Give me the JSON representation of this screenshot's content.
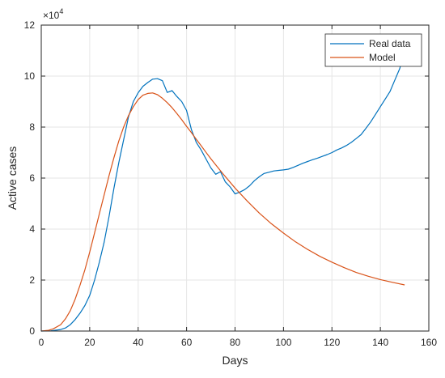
{
  "chart_data": {
    "type": "line",
    "xlabel": "Days",
    "ylabel": "Active cases",
    "exponent_label": "×10",
    "exponent_power": "4",
    "xlim": [
      0,
      160
    ],
    "ylim": [
      0,
      120000
    ],
    "xticks": [
      0,
      20,
      40,
      60,
      80,
      100,
      120,
      140,
      160
    ],
    "yticks": [
      0,
      20000,
      40000,
      60000,
      80000,
      100000,
      120000
    ],
    "xtick_labels": [
      "0",
      "20",
      "40",
      "60",
      "80",
      "100",
      "120",
      "140",
      "160"
    ],
    "ytick_labels": [
      "0",
      "2",
      "4",
      "6",
      "8",
      "10",
      "12"
    ],
    "grid": true,
    "legend_position": "top-right",
    "series": [
      {
        "name": "Real data",
        "color": "#0072BD",
        "x": [
          0,
          4,
          8,
          10,
          12,
          14,
          16,
          18,
          20,
          22,
          24,
          26,
          28,
          30,
          32,
          34,
          36,
          38,
          40,
          42,
          44,
          46,
          48,
          50,
          52,
          54,
          56,
          58,
          60,
          62,
          64,
          66,
          68,
          70,
          72,
          74,
          76,
          78,
          80,
          82,
          84,
          86,
          88,
          90,
          92,
          94,
          96,
          98,
          100,
          102,
          104,
          106,
          108,
          110,
          112,
          114,
          116,
          118,
          120,
          122,
          124,
          126,
          128,
          130,
          132,
          134,
          136,
          138,
          140,
          142,
          144,
          146,
          148,
          150
        ],
        "y": [
          0,
          100,
          600,
          1200,
          2500,
          4500,
          7000,
          10000,
          14000,
          20000,
          27000,
          35000,
          45000,
          56000,
          66000,
          75000,
          84000,
          90000,
          93500,
          96000,
          97500,
          98800,
          99000,
          98200,
          93600,
          94300,
          92000,
          90000,
          86500,
          79000,
          74000,
          71000,
          67500,
          64000,
          61500,
          62500,
          58500,
          56500,
          53800,
          54500,
          55500,
          57000,
          59000,
          60500,
          61800,
          62300,
          62800,
          63000,
          63200,
          63500,
          64200,
          65000,
          65800,
          66500,
          67200,
          67800,
          68500,
          69200,
          70000,
          71000,
          71800,
          72800,
          74000,
          75500,
          77000,
          79500,
          82000,
          85000,
          88000,
          91000,
          94000,
          98500,
          103000,
          110000
        ]
      },
      {
        "name": "Model",
        "color": "#D95319",
        "x": [
          0,
          3,
          5,
          8,
          10,
          12,
          14,
          16,
          18,
          20,
          22,
          24,
          26,
          28,
          30,
          32,
          34,
          36,
          38,
          40,
          42,
          44,
          46,
          48,
          50,
          52,
          54,
          56,
          58,
          60,
          62,
          64,
          66,
          68,
          70,
          72,
          75,
          80,
          85,
          90,
          95,
          100,
          105,
          110,
          115,
          120,
          125,
          130,
          135,
          140,
          145,
          150
        ],
        "y": [
          0,
          300,
          900,
          2500,
          4800,
          8000,
          12500,
          18000,
          24000,
          31000,
          38500,
          46000,
          53500,
          61000,
          68000,
          74500,
          80000,
          84500,
          88000,
          90800,
          92500,
          93200,
          93400,
          92700,
          91300,
          89600,
          87600,
          85300,
          82900,
          80300,
          77800,
          75200,
          72700,
          70100,
          67600,
          65200,
          61700,
          56100,
          51000,
          46300,
          42100,
          38400,
          35000,
          32000,
          29300,
          27000,
          24900,
          23000,
          21500,
          20200,
          19100,
          18100
        ]
      }
    ]
  }
}
